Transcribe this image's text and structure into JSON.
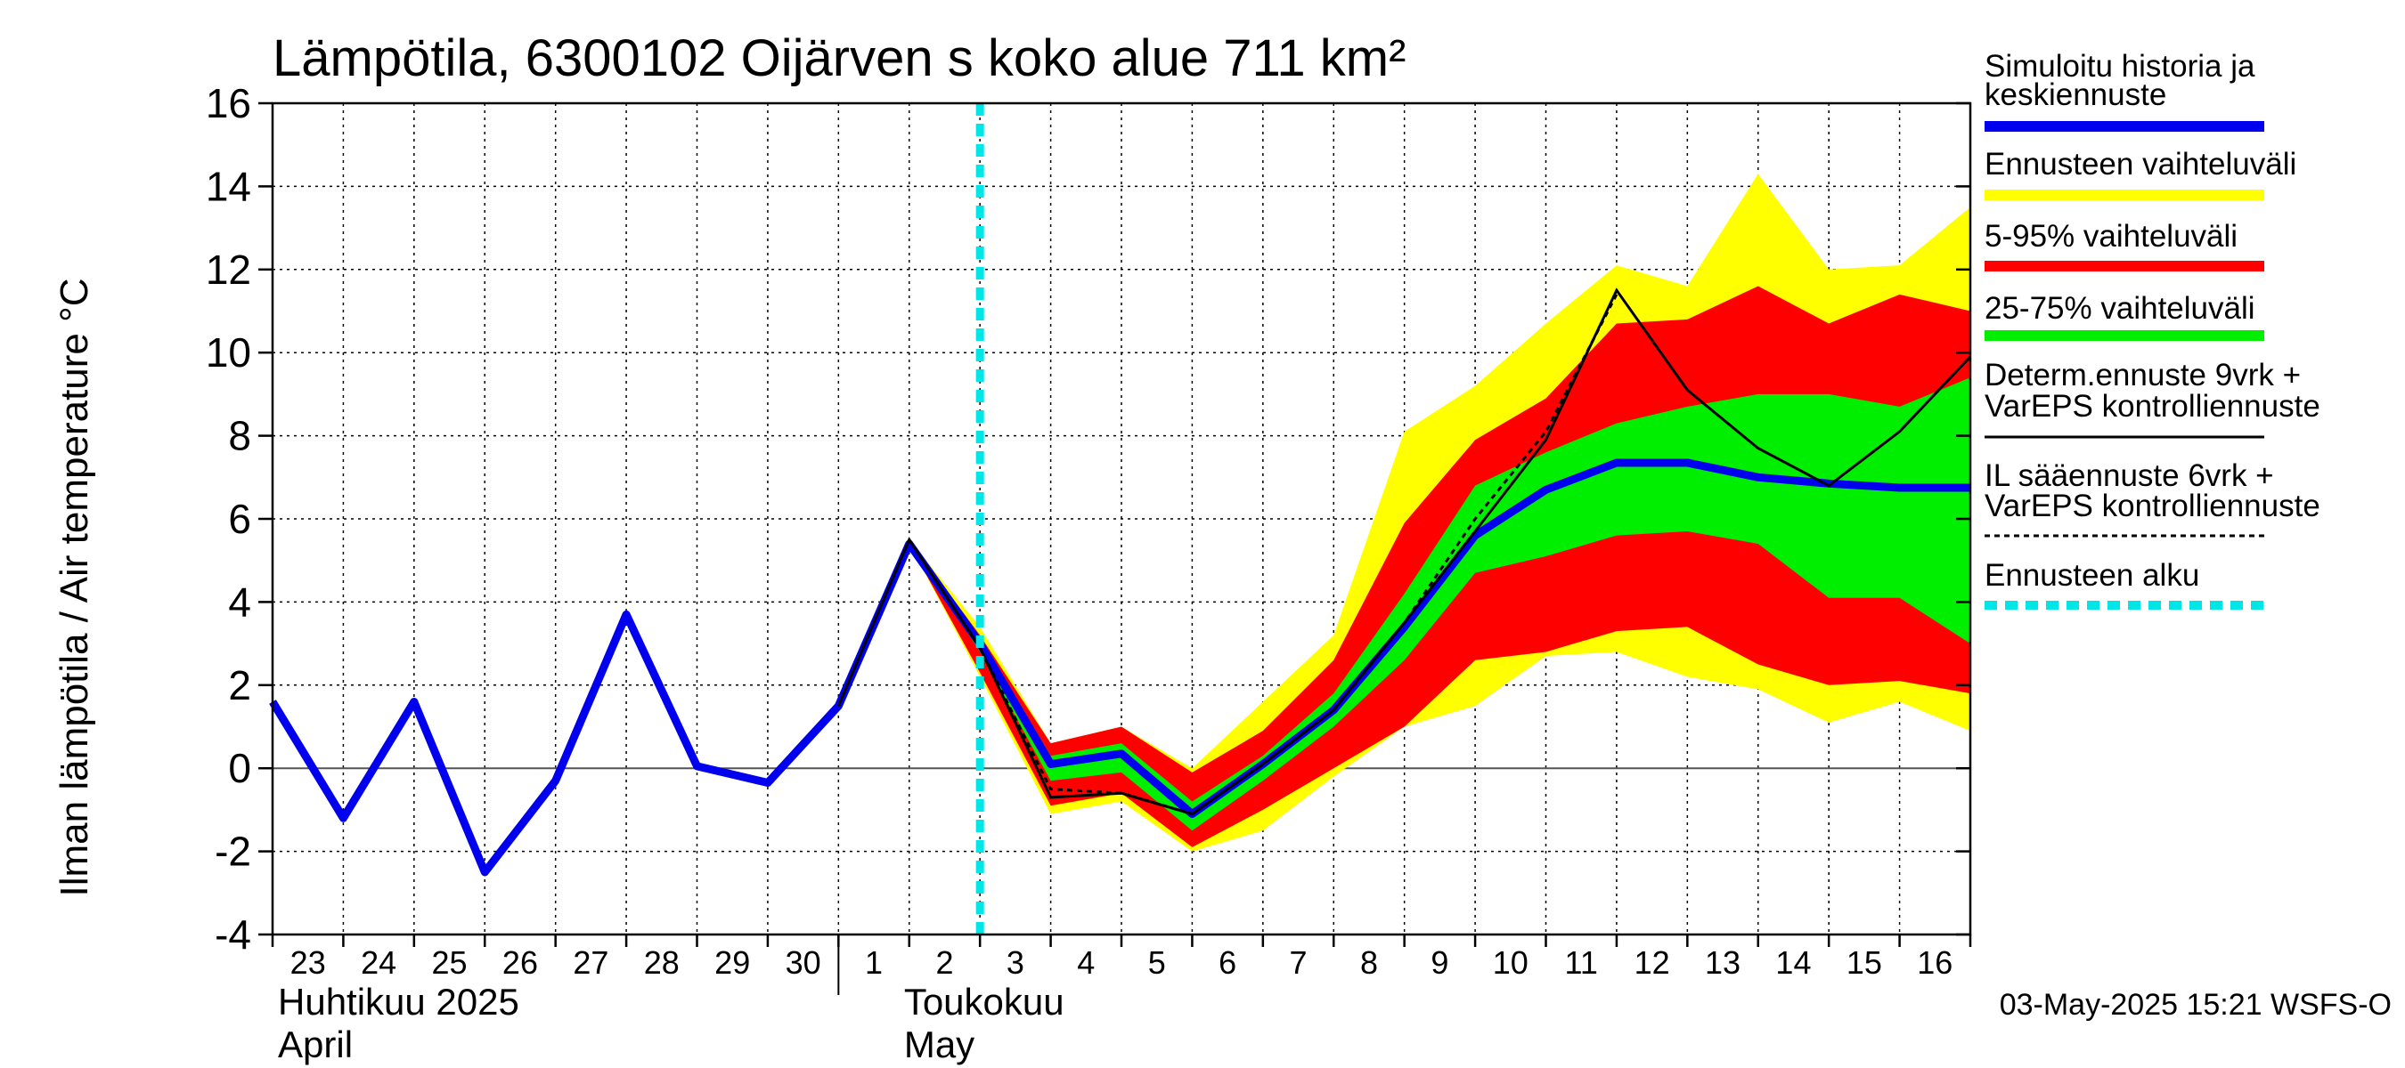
{
  "title": "Lämpötila, 6300102 Oijärven s koko alue 711 km²",
  "timestamp": "03-May-2025 15:21 WSFS-O",
  "colors": {
    "blue": "#0000ee",
    "yellow": "#ffff00",
    "red": "#ff0000",
    "green": "#00ee00",
    "cyan": "#00e5e5",
    "black": "#000000"
  },
  "legend": [
    {
      "lines": [
        "Simuloitu historia ja",
        "keskiennuste"
      ],
      "swatch": "blue"
    },
    {
      "lines": [
        "Ennusteen vaihteluväli"
      ],
      "swatch": "yellow"
    },
    {
      "lines": [
        "5-95% vaihteluväli"
      ],
      "swatch": "red"
    },
    {
      "lines": [
        "25-75% vaihteluväli"
      ],
      "swatch": "green"
    },
    {
      "lines": [
        "Determ.ennuste 9vrk +",
        "VarEPS kontrolliennuste"
      ],
      "swatch": "black-solid"
    },
    {
      "lines": [
        "IL sääennuste 6vrk  +",
        "  VarEPS kontrolliennuste"
      ],
      "swatch": "black-dashed"
    },
    {
      "lines": [
        "Ennusteen alku"
      ],
      "swatch": "cyan-dashed"
    }
  ],
  "chart_data": {
    "type": "area",
    "title": "Lämpötila, 6300102 Oijärven s koko alue 711 km²",
    "ylabel": "Ilman lämpötila / Air temperature    °C",
    "ylim": [
      -4,
      16
    ],
    "yticks": [
      -4,
      -2,
      0,
      2,
      4,
      6,
      8,
      10,
      12,
      14,
      16
    ],
    "xlim": [
      0,
      24
    ],
    "day_labels": [
      "23",
      "24",
      "25",
      "26",
      "27",
      "28",
      "29",
      "30",
      "1",
      "2",
      "3",
      "4",
      "5",
      "6",
      "7",
      "8",
      "9",
      "10",
      "11",
      "12",
      "13",
      "14",
      "15",
      "16"
    ],
    "month_labels": [
      {
        "lines": [
          "Huhtikuu  2025",
          "April"
        ],
        "at": 0
      },
      {
        "lines": [
          "Toukokuu",
          "May"
        ],
        "at": 8.85
      }
    ],
    "month_separator_at": 8,
    "forecast_start": 10.0,
    "grid": true,
    "legend_position": "right",
    "series": [
      {
        "name": "Simuloitu historia ja keskiennuste",
        "color": "blue",
        "x": [
          0,
          1,
          2,
          3,
          4,
          5,
          6,
          7,
          8,
          9,
          10,
          11,
          12,
          13,
          14,
          15,
          16,
          17,
          18,
          19,
          20,
          21,
          22,
          23,
          24
        ],
        "y": [
          1.6,
          -1.2,
          1.6,
          -2.5,
          -0.3,
          3.7,
          0.05,
          -0.35,
          1.5,
          5.4,
          3.0,
          0.1,
          0.35,
          -1.1,
          0.1,
          1.4,
          3.4,
          5.6,
          6.7,
          7.35,
          7.35,
          7.0,
          6.85,
          6.75,
          6.75
        ]
      },
      {
        "name": "Ennusteen vaihteluväli",
        "color": "yellow",
        "x": [
          9,
          10,
          11,
          12,
          13,
          14,
          15,
          16,
          17,
          18,
          19,
          20,
          21,
          22,
          23,
          24
        ],
        "upper": [
          5.5,
          3.4,
          0.6,
          1.0,
          0.0,
          1.6,
          3.2,
          8.1,
          9.2,
          10.7,
          12.1,
          11.6,
          14.3,
          12.0,
          12.1,
          13.5
        ],
        "lower": [
          5.4,
          2.2,
          -1.1,
          -0.8,
          -2.0,
          -1.5,
          -0.2,
          1.0,
          1.5,
          2.7,
          2.8,
          2.2,
          1.9,
          1.1,
          1.6,
          0.9
        ]
      },
      {
        "name": "5-95% vaihteluväli",
        "color": "red",
        "x": [
          9,
          10,
          11,
          12,
          13,
          14,
          15,
          16,
          17,
          18,
          19,
          20,
          21,
          22,
          23,
          24
        ],
        "upper": [
          5.5,
          3.2,
          0.6,
          1.0,
          -0.1,
          0.9,
          2.6,
          5.9,
          7.9,
          8.9,
          10.7,
          10.8,
          11.6,
          10.7,
          11.4,
          11.0
        ],
        "lower": [
          5.4,
          2.3,
          -0.9,
          -0.6,
          -1.9,
          -1.0,
          0.0,
          1.0,
          2.6,
          2.8,
          3.3,
          3.4,
          2.5,
          2.0,
          2.1,
          1.8
        ]
      },
      {
        "name": "25-75% vaihteluväli",
        "color": "green",
        "x": [
          9,
          10,
          11,
          12,
          13,
          14,
          15,
          16,
          17,
          18,
          19,
          20,
          21,
          22,
          23,
          24
        ],
        "upper": [
          5.45,
          3.1,
          0.3,
          0.6,
          -0.8,
          0.3,
          1.8,
          4.2,
          6.8,
          7.6,
          8.3,
          8.7,
          9.0,
          9.0,
          8.7,
          9.4
        ],
        "lower": [
          5.4,
          2.8,
          -0.3,
          -0.1,
          -1.5,
          -0.3,
          1.0,
          2.6,
          4.7,
          5.1,
          5.6,
          5.7,
          5.4,
          4.1,
          4.1,
          3.0
        ]
      },
      {
        "name": "Determ.ennuste 9vrk + VarEPS kontrolliennuste",
        "color": "black",
        "style": "solid",
        "x": [
          8,
          9,
          10,
          11,
          12,
          13,
          14,
          15,
          16,
          17,
          18,
          19,
          20,
          21,
          22,
          23,
          24
        ],
        "y": [
          1.5,
          5.5,
          2.9,
          -0.7,
          -0.6,
          -1.1,
          0.1,
          1.4,
          3.5,
          5.7,
          7.9,
          11.5,
          9.1,
          7.7,
          6.8,
          8.1,
          9.9
        ]
      },
      {
        "name": "IL sääennuste 6vrk + VarEPS kontrolliennuste",
        "color": "black",
        "style": "dashed",
        "x": [
          9,
          10,
          11,
          12,
          13,
          14,
          15,
          16,
          17,
          18,
          19
        ],
        "y": [
          5.5,
          2.9,
          -0.5,
          -0.6,
          -1.1,
          0.1,
          1.4,
          3.5,
          6.0,
          8.1,
          11.4
        ]
      }
    ]
  }
}
